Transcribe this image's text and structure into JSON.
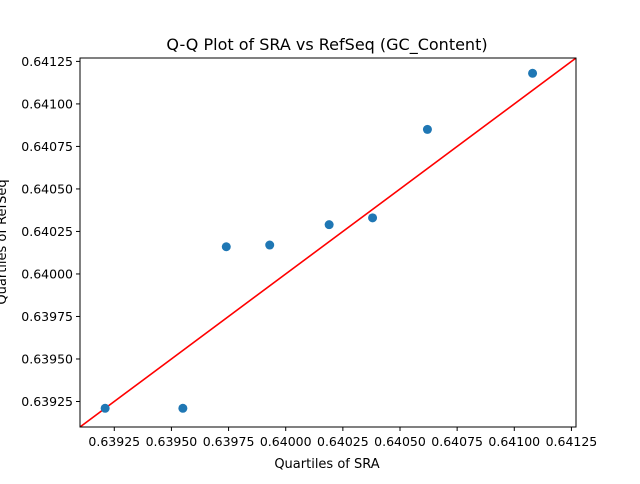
{
  "chart_data": {
    "type": "scatter",
    "title": "Q-Q Plot of SRA vs RefSeq (GC_Content)",
    "xlabel": "Quartiles of SRA",
    "ylabel": "Quartiles of RefSeq",
    "xlim": [
      0.6391,
      0.64127
    ],
    "ylim": [
      0.6391,
      0.64127
    ],
    "x_ticks": [
      0.63925,
      0.6395,
      0.63975,
      0.64,
      0.64025,
      0.6405,
      0.64075,
      0.641,
      0.64125
    ],
    "x_tick_labels": [
      "0.63925",
      "0.63950",
      "0.63975",
      "0.64000",
      "0.64025",
      "0.64050",
      "0.64075",
      "0.64100",
      "0.64125"
    ],
    "y_ticks": [
      0.63925,
      0.6395,
      0.63975,
      0.64,
      0.64025,
      0.6405,
      0.64075,
      0.641,
      0.64125
    ],
    "y_tick_labels": [
      "0.63925",
      "0.63950",
      "0.63975",
      "0.64000",
      "0.64025",
      "0.64050",
      "0.64075",
      "0.64100",
      "0.64125"
    ],
    "grid": false,
    "legend": "none",
    "series": [
      {
        "points": [
          {
            "x": 0.63921,
            "y": 0.63921
          },
          {
            "x": 0.63955,
            "y": 0.63921
          },
          {
            "x": 0.63974,
            "y": 0.64016
          },
          {
            "x": 0.63993,
            "y": 0.64017
          },
          {
            "x": 0.64019,
            "y": 0.64029
          },
          {
            "x": 0.64038,
            "y": 0.64033
          },
          {
            "x": 0.64062,
            "y": 0.64085
          },
          {
            "x": 0.64108,
            "y": 0.64118
          }
        ],
        "color": "#1f77b4"
      }
    ],
    "reference_line": {
      "kind": "y=x",
      "color": "#ff0000"
    }
  }
}
